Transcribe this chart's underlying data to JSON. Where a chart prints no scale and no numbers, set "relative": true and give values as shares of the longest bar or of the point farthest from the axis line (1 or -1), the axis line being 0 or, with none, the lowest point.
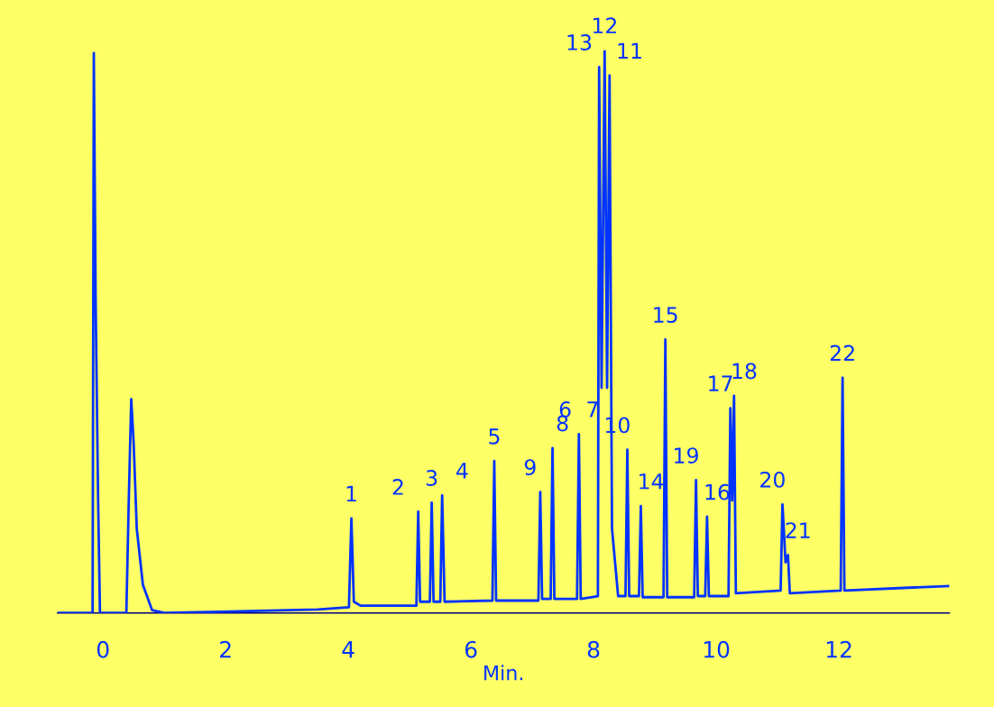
{
  "chart_data": {
    "type": "line",
    "relative": true,
    "xlabel": "Min.",
    "xlim": [
      -0.74,
      13.8
    ],
    "xticks": [
      0,
      2,
      4,
      6,
      8,
      10,
      12
    ],
    "grid": false,
    "marker": "none",
    "line_style": "solid",
    "series": [
      {
        "color": "#0033ff",
        "x": [
          -0.74,
          -0.17,
          -0.15,
          -0.12,
          -0.08,
          -0.05,
          0.38,
          0.42,
          0.46,
          0.5,
          0.55,
          0.65,
          0.8,
          1.0,
          3.5,
          4.01,
          4.05,
          4.09,
          4.2,
          5.11,
          5.14,
          5.17,
          5.33,
          5.36,
          5.39,
          5.5,
          5.53,
          5.57,
          6.35,
          6.38,
          6.41,
          7.1,
          7.13,
          7.16,
          7.3,
          7.33,
          7.36,
          7.73,
          7.76,
          7.79,
          8.07,
          8.09,
          8.13,
          8.18,
          8.22,
          8.26,
          8.3,
          8.4,
          8.52,
          8.55,
          8.58,
          8.74,
          8.77,
          8.8,
          9.14,
          9.17,
          9.2,
          9.64,
          9.67,
          9.7,
          9.82,
          9.85,
          9.88,
          10.2,
          10.23,
          10.26,
          10.29,
          10.32,
          11.05,
          11.08,
          11.13,
          11.17,
          11.2,
          12.03,
          12.06,
          12.09,
          13.8
        ],
        "values": [
          0,
          0,
          0.995,
          0.55,
          0.2,
          0,
          0,
          0.2,
          0.38,
          0.3,
          0.15,
          0.05,
          0.005,
          0,
          0.006,
          0.01,
          0.168,
          0.02,
          0.013,
          0.013,
          0.18,
          0.02,
          0.02,
          0.196,
          0.02,
          0.02,
          0.209,
          0.02,
          0.022,
          0.27,
          0.022,
          0.022,
          0.215,
          0.025,
          0.025,
          0.293,
          0.025,
          0.025,
          0.318,
          0.025,
          0.03,
          0.97,
          0.4,
          1.0,
          0.4,
          0.955,
          0.15,
          0.03,
          0.03,
          0.29,
          0.03,
          0.03,
          0.19,
          0.028,
          0.028,
          0.486,
          0.028,
          0.028,
          0.236,
          0.03,
          0.03,
          0.171,
          0.03,
          0.03,
          0.364,
          0.2,
          0.386,
          0.035,
          0.04,
          0.193,
          0.09,
          0.103,
          0.035,
          0.04,
          0.418,
          0.04,
          0.048
        ]
      }
    ],
    "annotations": [
      {
        "text": "1",
        "x": 4.05,
        "y": 0.168
      },
      {
        "text": "2",
        "x": 5.14,
        "y": 0.18
      },
      {
        "text": "3",
        "x": 5.36,
        "y": 0.196
      },
      {
        "text": "4",
        "x": 5.53,
        "y": 0.209
      },
      {
        "text": "5",
        "x": 6.38,
        "y": 0.27
      },
      {
        "text": "9",
        "x": 7.13,
        "y": 0.215
      },
      {
        "text": "8",
        "x": 7.33,
        "y": 0.293
      },
      {
        "text": "6",
        "x": 7.7,
        "y": 0.318
      },
      {
        "text": "7",
        "x": 7.82,
        "y": 0.318
      },
      {
        "text": "13",
        "x": 8.09,
        "y": 0.97
      },
      {
        "text": "12",
        "x": 8.18,
        "y": 1.0
      },
      {
        "text": "11",
        "x": 8.26,
        "y": 0.955
      },
      {
        "text": "10",
        "x": 8.55,
        "y": 0.29
      },
      {
        "text": "14",
        "x": 8.77,
        "y": 0.19
      },
      {
        "text": "15",
        "x": 9.17,
        "y": 0.486
      },
      {
        "text": "19",
        "x": 9.67,
        "y": 0.236
      },
      {
        "text": "16",
        "x": 9.85,
        "y": 0.171
      },
      {
        "text": "17",
        "x": 10.23,
        "y": 0.364
      },
      {
        "text": "18",
        "x": 10.29,
        "y": 0.386
      },
      {
        "text": "20",
        "x": 11.08,
        "y": 0.193
      },
      {
        "text": "21",
        "x": 11.17,
        "y": 0.103
      },
      {
        "text": "22",
        "x": 12.06,
        "y": 0.418
      }
    ]
  }
}
